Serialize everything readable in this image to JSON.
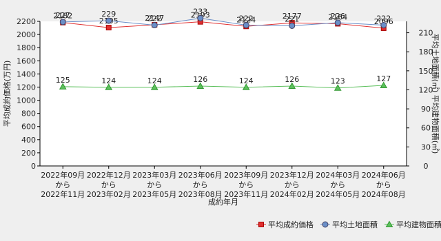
{
  "chart_data": {
    "type": "line",
    "categories": [
      "2022年09月\nから\n2022年11月",
      "2022年12月\nから\n2023年02月",
      "2023年03月\nから\n2023年05月",
      "2023年06月\nから\n2023年08月",
      "2023年09月\nから\n2023年11月",
      "2023年12月\nから\n2024年02月",
      "2024年03月\nから\n2024年05月",
      "2024年06月\nから\n2024年08月"
    ],
    "xlabel": "成約年月",
    "ylabel": "平均成約価格(万円)",
    "y2label": "平均土地面積(㎡)  平均建物面積(㎡)",
    "ylim": [
      0,
      2200
    ],
    "yticks": [
      0,
      200,
      400,
      600,
      800,
      1000,
      1200,
      1400,
      1600,
      1800,
      2000,
      2200
    ],
    "y2lim": [
      0,
      228
    ],
    "y2ticks": [
      0,
      30,
      60,
      90,
      120,
      150,
      180,
      210
    ],
    "legend": "bottom-right",
    "series": [
      {
        "name": "平均成約価格",
        "color": "#e03030",
        "marker": "square",
        "axis": "y",
        "values": [
          2182,
          2105,
          2147,
          2193,
          2124,
          2177,
          2164,
          2096
        ]
      },
      {
        "name": "平均土地面積",
        "color": "#6a8fc8",
        "marker": "circle",
        "axis": "y2",
        "values": [
          227,
          229,
          222,
          233,
          222,
          221,
          226,
          222
        ]
      },
      {
        "name": "平均建物面積",
        "color": "#5cc05c",
        "marker": "triangle",
        "axis": "y2",
        "values": [
          125,
          124,
          124,
          126,
          124,
          126,
          123,
          127
        ]
      }
    ]
  }
}
